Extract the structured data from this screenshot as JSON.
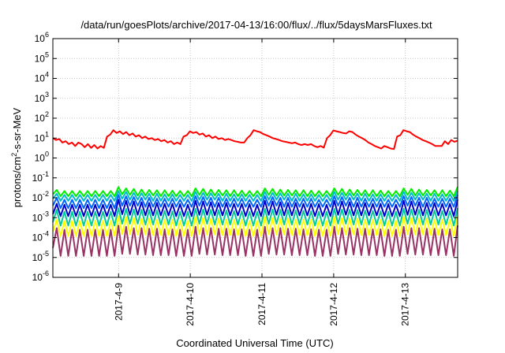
{
  "chart_data": {
    "type": "line",
    "title": "/data/run/goesPlots/archive/2017-04-13/16:00/flux/../flux/5daysMarsFluxes.txt",
    "xlabel": "Coordinated Universal Time (UTC)",
    "ylabel_parts": [
      "protons/cm",
      "2",
      "-s-sr-MeV"
    ],
    "y_scale": "log",
    "ylim": [
      1e-06,
      1000000.0
    ],
    "y_ticks": [
      {
        "base": "10",
        "exp": "-6",
        "value": 1e-06
      },
      {
        "base": "10",
        "exp": "-5",
        "value": 1e-05
      },
      {
        "base": "10",
        "exp": "-4",
        "value": 0.0001
      },
      {
        "base": "10",
        "exp": "-3",
        "value": 0.001
      },
      {
        "base": "10",
        "exp": "-2",
        "value": 0.01
      },
      {
        "base": "10",
        "exp": "-1",
        "value": 0.1
      },
      {
        "base": "10",
        "exp": "0",
        "value": 1
      },
      {
        "base": "10",
        "exp": "1",
        "value": 10
      },
      {
        "base": "10",
        "exp": "2",
        "value": 100
      },
      {
        "base": "10",
        "exp": "3",
        "value": 1000
      },
      {
        "base": "10",
        "exp": "4",
        "value": 10000
      },
      {
        "base": "10",
        "exp": "5",
        "value": 100000
      },
      {
        "base": "10",
        "exp": "6",
        "value": 1000000
      }
    ],
    "xlim": [
      "2017-04-08 02:00",
      "2017-04-13 17:30"
    ],
    "x_ticks": [
      "2017-4-9",
      "2017-4-10",
      "2017-4-11",
      "2017-4-12",
      "2017-4-13"
    ],
    "grid": true,
    "legend": "none",
    "series": [
      {
        "color": "#ff0000",
        "x_start": "2017-04-08 02:00",
        "x_end": "2017-04-13 17:30",
        "values": [
          10,
          8,
          9,
          6,
          7,
          5,
          6,
          4,
          6,
          5,
          3.5,
          5,
          3.2,
          4.5,
          3,
          4,
          3.2,
          12,
          15,
          25,
          18,
          22,
          16,
          20,
          14,
          17,
          12,
          14,
          10,
          12,
          9,
          10,
          8,
          9,
          7,
          8,
          6,
          7,
          5,
          6,
          5,
          12,
          14,
          22,
          18,
          20,
          15,
          17,
          12,
          14,
          10,
          12,
          9,
          10,
          8,
          9,
          8,
          7,
          6.5,
          6,
          6,
          10,
          14,
          25,
          22,
          20,
          16,
          14,
          12,
          10,
          9,
          8,
          7,
          6.5,
          6,
          5.5,
          6,
          5,
          4.5,
          5,
          4.5,
          5,
          4,
          3.5,
          4,
          3.3,
          10,
          14,
          24,
          22,
          20,
          18,
          17,
          22,
          20,
          15,
          12,
          10,
          8,
          6,
          5,
          4,
          3.5,
          3,
          4,
          3.5,
          3,
          2.8,
          12,
          14,
          25,
          22,
          20,
          15,
          12,
          10,
          8,
          7,
          6,
          5,
          4,
          4,
          4,
          7,
          5,
          8,
          6.5,
          7.5
        ]
      },
      {
        "color": "#00ee00",
        "x_start": "2017-04-08 02:00",
        "x_end": "2017-04-13 17:30",
        "values": [
          0.015,
          0.025,
          0.012,
          0.022,
          0.012,
          0.022,
          0.012,
          0.022,
          0.012,
          0.022,
          0.012,
          0.022,
          0.012,
          0.022,
          0.012,
          0.022,
          0.012,
          0.035,
          0.015,
          0.03,
          0.014,
          0.028,
          0.013,
          0.026,
          0.013,
          0.025,
          0.013,
          0.024,
          0.012,
          0.024,
          0.012,
          0.023,
          0.012,
          0.022,
          0.012,
          0.022,
          0.012,
          0.03,
          0.014,
          0.028,
          0.013,
          0.026,
          0.013,
          0.025,
          0.013,
          0.024,
          0.012,
          0.024,
          0.012,
          0.023,
          0.012,
          0.022,
          0.012,
          0.022,
          0.012,
          0.03,
          0.014,
          0.028,
          0.013,
          0.026,
          0.013,
          0.025,
          0.013,
          0.024,
          0.012,
          0.024,
          0.012,
          0.023,
          0.012,
          0.022,
          0.012,
          0.022,
          0.012,
          0.03,
          0.014,
          0.028,
          0.013,
          0.026,
          0.013,
          0.025,
          0.013,
          0.024,
          0.012,
          0.024,
          0.012,
          0.023,
          0.012,
          0.022,
          0.012,
          0.022,
          0.012,
          0.03,
          0.014,
          0.028,
          0.013,
          0.026,
          0.013,
          0.025,
          0.013,
          0.024,
          0.012,
          0.024,
          0.012,
          0.023,
          0.012,
          0.035
        ]
      },
      {
        "color": "#00bbcc",
        "x_start": "2017-04-08 02:00",
        "x_end": "2017-04-13 17:30",
        "values": [
          0.009,
          0.016,
          0.007,
          0.014,
          0.007,
          0.014,
          0.007,
          0.014,
          0.007,
          0.014,
          0.007,
          0.014,
          0.007,
          0.014,
          0.007,
          0.014,
          0.007,
          0.022,
          0.009,
          0.02,
          0.008,
          0.018,
          0.008,
          0.017,
          0.008,
          0.016,
          0.007,
          0.016,
          0.007,
          0.015,
          0.007,
          0.015,
          0.007,
          0.014,
          0.007,
          0.014,
          0.007,
          0.02,
          0.008,
          0.018,
          0.008,
          0.017,
          0.008,
          0.016,
          0.007,
          0.016,
          0.007,
          0.015,
          0.007,
          0.015,
          0.007,
          0.014,
          0.007,
          0.014,
          0.007,
          0.02,
          0.008,
          0.018,
          0.008,
          0.017,
          0.008,
          0.016,
          0.007,
          0.016,
          0.007,
          0.015,
          0.007,
          0.015,
          0.007,
          0.014,
          0.007,
          0.014,
          0.007,
          0.02,
          0.008,
          0.018,
          0.008,
          0.017,
          0.008,
          0.016,
          0.007,
          0.016,
          0.007,
          0.015,
          0.007,
          0.015,
          0.007,
          0.014,
          0.007,
          0.014,
          0.007,
          0.02,
          0.008,
          0.018,
          0.008,
          0.017,
          0.008,
          0.016,
          0.007,
          0.016,
          0.007,
          0.015,
          0.007,
          0.015,
          0.007,
          0.022
        ]
      },
      {
        "color": "#0066ff",
        "x_start": "2017-04-08 02:00",
        "x_end": "2017-04-13 17:30",
        "values": [
          0.004,
          0.01,
          0.003,
          0.008,
          0.003,
          0.008,
          0.003,
          0.008,
          0.003,
          0.008,
          0.003,
          0.008,
          0.003,
          0.008,
          0.003,
          0.008,
          0.003,
          0.014,
          0.004,
          0.012,
          0.004,
          0.011,
          0.004,
          0.01,
          0.0035,
          0.01,
          0.0035,
          0.009,
          0.0035,
          0.009,
          0.0035,
          0.009,
          0.0035,
          0.008,
          0.0035,
          0.008,
          0.0035,
          0.012,
          0.004,
          0.011,
          0.004,
          0.01,
          0.0035,
          0.01,
          0.0035,
          0.009,
          0.0035,
          0.009,
          0.0035,
          0.009,
          0.0035,
          0.008,
          0.0035,
          0.008,
          0.0035,
          0.012,
          0.004,
          0.011,
          0.004,
          0.01,
          0.0035,
          0.01,
          0.0035,
          0.009,
          0.0035,
          0.009,
          0.0035,
          0.009,
          0.0035,
          0.008,
          0.0035,
          0.008,
          0.0035,
          0.012,
          0.004,
          0.011,
          0.004,
          0.01,
          0.0035,
          0.01,
          0.0035,
          0.009,
          0.0035,
          0.009,
          0.0035,
          0.009,
          0.0035,
          0.008,
          0.0035,
          0.008,
          0.0035,
          0.012,
          0.004,
          0.011,
          0.004,
          0.01,
          0.0035,
          0.01,
          0.0035,
          0.009,
          0.0035,
          0.009,
          0.0035,
          0.009,
          0.0035,
          0.014
        ]
      },
      {
        "color": "#0000cc",
        "x_start": "2017-04-08 02:00",
        "x_end": "2017-04-13 17:30",
        "values": [
          0.0015,
          0.005,
          0.0012,
          0.0045,
          0.0012,
          0.0045,
          0.0012,
          0.0045,
          0.0012,
          0.0045,
          0.0012,
          0.0045,
          0.0012,
          0.0045,
          0.0012,
          0.0045,
          0.0012,
          0.008,
          0.0015,
          0.007,
          0.0014,
          0.0065,
          0.0014,
          0.006,
          0.0013,
          0.0055,
          0.0013,
          0.0055,
          0.0013,
          0.005,
          0.0013,
          0.005,
          0.0012,
          0.0048,
          0.0012,
          0.0045,
          0.0012,
          0.007,
          0.0014,
          0.0065,
          0.0014,
          0.006,
          0.0013,
          0.0055,
          0.0013,
          0.0055,
          0.0013,
          0.005,
          0.0013,
          0.005,
          0.0012,
          0.0048,
          0.0012,
          0.0045,
          0.0012,
          0.007,
          0.0014,
          0.0065,
          0.0014,
          0.006,
          0.0013,
          0.0055,
          0.0013,
          0.0055,
          0.0013,
          0.005,
          0.0013,
          0.005,
          0.0012,
          0.0048,
          0.0012,
          0.0045,
          0.0012,
          0.007,
          0.0014,
          0.0065,
          0.0014,
          0.006,
          0.0013,
          0.0055,
          0.0013,
          0.0055,
          0.0013,
          0.005,
          0.0013,
          0.005,
          0.0012,
          0.0048,
          0.0012,
          0.0045,
          0.0012,
          0.007,
          0.0014,
          0.0065,
          0.0014,
          0.006,
          0.0013,
          0.0055,
          0.0013,
          0.0055,
          0.0013,
          0.005,
          0.0013,
          0.005,
          0.0012,
          0.008
        ]
      },
      {
        "color": "#00cc99",
        "x_start": "2017-04-08 02:00",
        "x_end": "2017-04-13 17:30",
        "values": [
          0.0006,
          0.0025,
          0.0004,
          0.002,
          0.0004,
          0.002,
          0.0004,
          0.002,
          0.0004,
          0.002,
          0.0004,
          0.002,
          0.0004,
          0.002,
          0.0004,
          0.002,
          0.0004,
          0.003,
          0.0005,
          0.0028,
          0.0005,
          0.0026,
          0.0005,
          0.0025,
          0.00045,
          0.0024,
          0.00045,
          0.0023,
          0.00045,
          0.0022,
          0.00045,
          0.0021,
          0.0004,
          0.002,
          0.0004,
          0.002,
          0.0004,
          0.0028,
          0.0005,
          0.0026,
          0.0005,
          0.0025,
          0.00045,
          0.0024,
          0.00045,
          0.0023,
          0.00045,
          0.0022,
          0.00045,
          0.0021,
          0.0004,
          0.002,
          0.0004,
          0.002,
          0.0004,
          0.0028,
          0.0005,
          0.0026,
          0.0005,
          0.0025,
          0.00045,
          0.0024,
          0.00045,
          0.0023,
          0.00045,
          0.0022,
          0.00045,
          0.0021,
          0.0004,
          0.002,
          0.0004,
          0.002,
          0.0004,
          0.0028,
          0.0005,
          0.0026,
          0.0005,
          0.0025,
          0.00045,
          0.0024,
          0.00045,
          0.0023,
          0.00045,
          0.0022,
          0.00045,
          0.0021,
          0.0004,
          0.002,
          0.0004,
          0.002,
          0.0004,
          0.0028,
          0.0005,
          0.0026,
          0.0005,
          0.0025,
          0.00045,
          0.0024,
          0.00045,
          0.0023,
          0.00045,
          0.0022,
          0.00045,
          0.0021,
          0.0004,
          0.003
        ]
      },
      {
        "color": "#ffff00",
        "x_start": "2017-04-08 02:00",
        "x_end": "2017-04-13 17:30",
        "values": [
          0.0002,
          0.0008,
          0.00012,
          0.0007,
          0.00012,
          0.0007,
          0.00012,
          0.0007,
          0.00012,
          0.0007,
          0.00012,
          0.0007,
          0.00012,
          0.0007,
          0.00012,
          0.0007,
          0.00012,
          0.0012,
          0.00015,
          0.0011,
          0.00015,
          0.001,
          0.00014,
          0.0009,
          0.00014,
          0.0009,
          0.00013,
          0.0008,
          0.00013,
          0.0008,
          0.00013,
          0.0008,
          0.00012,
          0.0007,
          0.00012,
          0.0007,
          0.00012,
          0.0011,
          0.00015,
          0.001,
          0.00014,
          0.0009,
          0.00014,
          0.0009,
          0.00013,
          0.0008,
          0.00013,
          0.0008,
          0.00013,
          0.0008,
          0.00012,
          0.0007,
          0.00012,
          0.0007,
          0.00012,
          0.0011,
          0.00015,
          0.001,
          0.00014,
          0.0009,
          0.00014,
          0.0009,
          0.00013,
          0.0008,
          0.00013,
          0.0008,
          0.00013,
          0.0008,
          0.00012,
          0.0007,
          0.00012,
          0.0007,
          0.00012,
          0.0011,
          0.00015,
          0.001,
          0.00014,
          0.0009,
          0.00014,
          0.0009,
          0.00013,
          0.0008,
          0.00013,
          0.0008,
          0.00013,
          0.0008,
          0.00012,
          0.0007,
          0.00012,
          0.0007,
          0.00012,
          0.0011,
          0.00015,
          0.001,
          0.00014,
          0.0009,
          0.00014,
          0.0009,
          0.00013,
          0.0008,
          0.00013,
          0.0008,
          0.00013,
          0.0008,
          0.00012,
          0.0012
        ]
      },
      {
        "color": "#993366",
        "x_start": "2017-04-08 02:00",
        "x_end": "2017-04-13 17:30",
        "values": [
          3e-05,
          0.0003,
          1.2e-05,
          0.00025,
          1.2e-05,
          0.00025,
          1.2e-05,
          0.00025,
          1.2e-05,
          0.00025,
          1.2e-05,
          0.00025,
          1.2e-05,
          0.00025,
          1.2e-05,
          0.00025,
          1.2e-05,
          0.0004,
          1.5e-05,
          0.00035,
          1.5e-05,
          0.0003,
          1.4e-05,
          0.0003,
          1.4e-05,
          0.00028,
          1.3e-05,
          0.00028,
          1.3e-05,
          0.00026,
          1.3e-05,
          0.00026,
          1.2e-05,
          0.00025,
          1.2e-05,
          0.00025,
          1.2e-05,
          0.00035,
          1.5e-05,
          0.0003,
          1.4e-05,
          0.0003,
          1.4e-05,
          0.00028,
          1.3e-05,
          0.00028,
          1.3e-05,
          0.00026,
          1.3e-05,
          0.00026,
          1.2e-05,
          0.00025,
          1.2e-05,
          0.00025,
          1.2e-05,
          0.00035,
          1.5e-05,
          0.0003,
          1.4e-05,
          0.0003,
          1.4e-05,
          0.00028,
          1.3e-05,
          0.00028,
          1.3e-05,
          0.00026,
          1.3e-05,
          0.00026,
          1.2e-05,
          0.00025,
          1.2e-05,
          0.00025,
          1.2e-05,
          0.00035,
          1.5e-05,
          0.0003,
          1.4e-05,
          0.0003,
          1.4e-05,
          0.00028,
          1.3e-05,
          0.00028,
          1.3e-05,
          0.00026,
          1.3e-05,
          0.00026,
          1.2e-05,
          0.00025,
          1.2e-05,
          0.00025,
          1.2e-05,
          0.00035,
          1.5e-05,
          0.0003,
          1.4e-05,
          0.0003,
          1.4e-05,
          0.00028,
          1.3e-05,
          0.00028,
          1.3e-05,
          0.00026,
          1.3e-05,
          0.00026,
          1.2e-05,
          0.0004
        ]
      }
    ]
  }
}
